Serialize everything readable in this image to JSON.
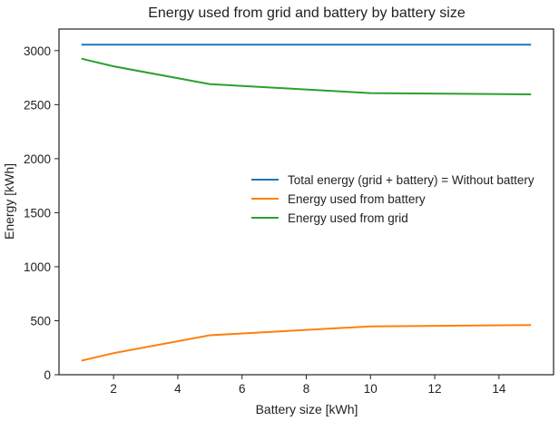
{
  "chart_data": {
    "type": "line",
    "title": "Energy used from grid and battery by battery size",
    "xlabel": "Battery size [kWh]",
    "ylabel": "Energy [kWh]",
    "xlim": [
      0.3,
      15.7
    ],
    "ylim": [
      0,
      3200
    ],
    "xticks": [
      2,
      4,
      6,
      8,
      10,
      12,
      14
    ],
    "yticks": [
      0,
      500,
      1000,
      1500,
      2000,
      2500,
      3000
    ],
    "grid": false,
    "legend_position": "center-right",
    "x": [
      1,
      2,
      5,
      10,
      15
    ],
    "series": [
      {
        "name": "Total energy (grid + battery) = Without battery",
        "color": "#1f77b4",
        "values": [
          3055,
          3055,
          3055,
          3055,
          3055
        ]
      },
      {
        "name": "Energy used from battery",
        "color": "#ff7f0e",
        "values": [
          130,
          200,
          365,
          448,
          460
        ]
      },
      {
        "name": "Energy used from grid",
        "color": "#2ca02c",
        "values": [
          2925,
          2855,
          2690,
          2607,
          2595
        ]
      }
    ]
  }
}
